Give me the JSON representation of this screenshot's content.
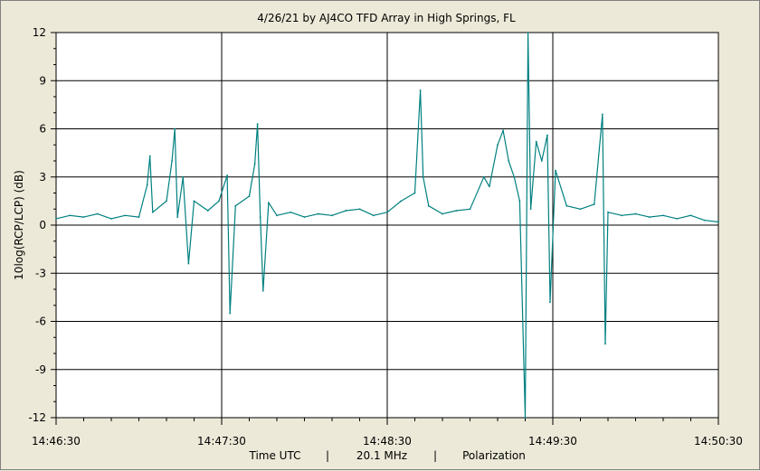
{
  "chart_data": {
    "type": "line",
    "title": "4/26/21  by  AJ4CO TFD Array  in  High Springs, FL",
    "ylabel": "10log(RCP/LCP)  (dB)",
    "xlabel": {
      "quantity": "Time UTC",
      "separator": "|",
      "frequency": "20.1 MHz",
      "measurement": "Polarization"
    },
    "xlim": [
      "14:46:30",
      "14:50:30"
    ],
    "ylim": [
      -12,
      12
    ],
    "x_ticks": [
      "14:46:30",
      "14:47:30",
      "14:48:30",
      "14:49:30",
      "14:50:30"
    ],
    "y_ticks": [
      "12",
      "9",
      "6",
      "3",
      "0",
      "-3",
      "-6",
      "-9",
      "-12"
    ],
    "grid": true,
    "line_color": "#008080",
    "series": [
      {
        "name": "",
        "points": [
          [
            "14:46:30",
            0.4
          ],
          [
            "14:46:35",
            0.6
          ],
          [
            "14:46:40",
            0.5
          ],
          [
            "14:46:45",
            0.7
          ],
          [
            "14:46:50",
            0.4
          ],
          [
            "14:46:55",
            0.6
          ],
          [
            "14:47:00",
            0.5
          ],
          [
            "14:47:03",
            2.5
          ],
          [
            "14:47:04",
            4.3
          ],
          [
            "14:47:05",
            0.8
          ],
          [
            "14:47:10",
            1.5
          ],
          [
            "14:47:12",
            4.0
          ],
          [
            "14:47:13",
            6.0
          ],
          [
            "14:47:14",
            0.5
          ],
          [
            "14:47:16",
            3.0
          ],
          [
            "14:47:18",
            -2.4
          ],
          [
            "14:47:20",
            1.5
          ],
          [
            "14:47:25",
            0.9
          ],
          [
            "14:47:29",
            1.5
          ],
          [
            "14:47:32",
            3.1
          ],
          [
            "14:47:33",
            -5.5
          ],
          [
            "14:47:35",
            1.2
          ],
          [
            "14:47:40",
            1.8
          ],
          [
            "14:47:42",
            3.8
          ],
          [
            "14:47:43",
            6.3
          ],
          [
            "14:47:44",
            0.5
          ],
          [
            "14:47:45",
            -4.1
          ],
          [
            "14:47:47",
            1.4
          ],
          [
            "14:47:50",
            0.6
          ],
          [
            "14:47:55",
            0.8
          ],
          [
            "14:48:00",
            0.5
          ],
          [
            "14:48:05",
            0.7
          ],
          [
            "14:48:10",
            0.6
          ],
          [
            "14:48:15",
            0.9
          ],
          [
            "14:48:20",
            1.0
          ],
          [
            "14:48:25",
            0.6
          ],
          [
            "14:48:30",
            0.8
          ],
          [
            "14:48:35",
            1.5
          ],
          [
            "14:48:40",
            2.0
          ],
          [
            "14:48:42",
            8.4
          ],
          [
            "14:48:43",
            3.0
          ],
          [
            "14:48:45",
            1.2
          ],
          [
            "14:48:50",
            0.7
          ],
          [
            "14:48:55",
            0.9
          ],
          [
            "14:49:00",
            1.0
          ],
          [
            "14:49:05",
            3.0
          ],
          [
            "14:49:07",
            2.4
          ],
          [
            "14:49:10",
            5.0
          ],
          [
            "14:49:12",
            5.9
          ],
          [
            "14:49:14",
            4.0
          ],
          [
            "14:49:16",
            3.0
          ],
          [
            "14:49:18",
            1.5
          ],
          [
            "14:49:20",
            -12.0
          ],
          [
            "14:49:21",
            12.0
          ],
          [
            "14:49:22",
            1.0
          ],
          [
            "14:49:24",
            5.2
          ],
          [
            "14:49:26",
            4.0
          ],
          [
            "14:49:28",
            5.6
          ],
          [
            "14:49:29",
            -4.8
          ],
          [
            "14:49:31",
            3.4
          ],
          [
            "14:49:35",
            1.2
          ],
          [
            "14:49:40",
            1.0
          ],
          [
            "14:49:45",
            1.3
          ],
          [
            "14:49:48",
            6.9
          ],
          [
            "14:49:49",
            -7.4
          ],
          [
            "14:49:50",
            0.8
          ],
          [
            "14:49:55",
            0.6
          ],
          [
            "14:50:00",
            0.7
          ],
          [
            "14:50:05",
            0.5
          ],
          [
            "14:50:10",
            0.6
          ],
          [
            "14:50:15",
            0.4
          ],
          [
            "14:50:20",
            0.6
          ],
          [
            "14:50:25",
            0.3
          ],
          [
            "14:50:30",
            0.2
          ]
        ]
      }
    ]
  }
}
